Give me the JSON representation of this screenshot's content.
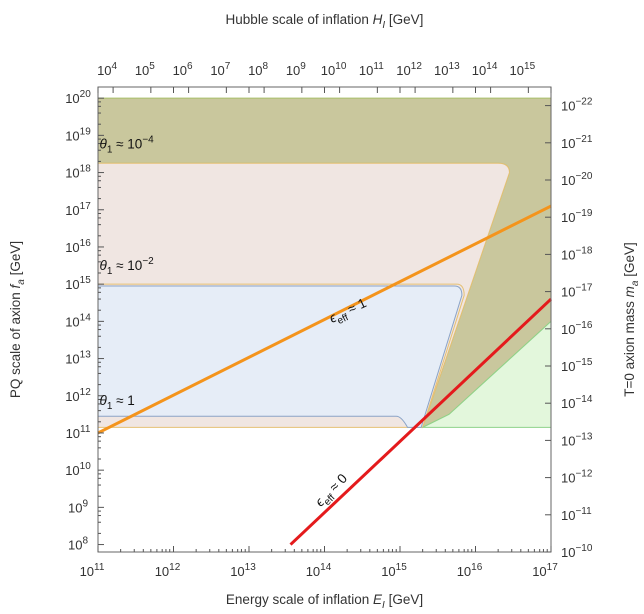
{
  "chart_data": {
    "type": "area",
    "title": "",
    "xlabel": {
      "main": "Energy scale of inflation ",
      "var": "E",
      "sub": "I",
      "unit": " [GeV]"
    },
    "ylabel": {
      "main": "PQ scale of axion ",
      "var": "f",
      "sub": "a",
      "unit": " [GeV]"
    },
    "x2label": {
      "main": "Hubble scale of inflation ",
      "var": "H",
      "sub": "I",
      "unit": " [GeV]"
    },
    "y2label": {
      "main": "T=0 axion mass ",
      "var": "m",
      "sub": "a",
      "unit": " [GeV]"
    },
    "x_scale": "log",
    "y_scale": "log",
    "xlim_exp": [
      11,
      17
    ],
    "ylim_exp": [
      7.8,
      20.3
    ],
    "x_ticks": [
      11,
      12,
      13,
      14,
      15,
      16,
      17
    ],
    "y_ticks": [
      8,
      9,
      10,
      11,
      12,
      13,
      14,
      15,
      16,
      17,
      18,
      19,
      20
    ],
    "x2_ticks": [
      4,
      5,
      6,
      7,
      8,
      9,
      10,
      11,
      12,
      13,
      14,
      15
    ],
    "y2_ticks": [
      -10,
      -11,
      -12,
      -13,
      -14,
      -15,
      -16,
      -17,
      -18,
      -19,
      -20,
      -21,
      -22
    ],
    "x2_mapping": "log10(H_I) = 2*log10(E_I) - 18.4",
    "y2_mapping": "log10(m_a) = -log10(f_a) - 2.2",
    "tick_base": "10",
    "regions": [
      {
        "name": "theta1 ~ 1e-4",
        "fill": "#f0e6e2",
        "stroke": "#e5c074",
        "left_exp": 11,
        "bottom_exp": 18.25,
        "right_exp": 16.45,
        "top_exp": 18.25
      },
      {
        "name": "theta1 ~ 1e-2",
        "fill": "#f0e6e2",
        "stroke": "#e5c074",
        "left_exp": 11,
        "top_exp": 15.0,
        "right_exp": 15.85
      },
      {
        "name": "theta1 ~ 1",
        "fill": "#e6edf7",
        "stroke": "#8aa4c8",
        "left_exp": 11,
        "top_exp": 11.45,
        "right_exp": 15.05
      },
      {
        "name": "green",
        "fill": "#e3f7dc",
        "stroke": "#8fd38a"
      },
      {
        "name": "olive",
        "fill": "#c9c79d",
        "stroke": "#a8bf6a",
        "top_exp": 20.0,
        "right_exp": 17.0
      }
    ],
    "lines": [
      {
        "name": "eps_eff ~ 1",
        "color": "#f4941c",
        "x": [
          11,
          17
        ],
        "y": [
          11.0,
          17.1
        ]
      },
      {
        "name": "eps_eff ~ 0",
        "color": "#e41a1c",
        "x": [
          13.55,
          17
        ],
        "y": [
          8.0,
          14.6
        ]
      }
    ],
    "annotations": [
      {
        "text": "θ",
        "sub": "1",
        "rel": " ≈ 10",
        "sup": "−4",
        "at": [
          11.02,
          18.65
        ]
      },
      {
        "text": "θ",
        "sub": "1",
        "rel": " ≈ 10",
        "sup": "−2",
        "at": [
          11.02,
          15.38
        ]
      },
      {
        "text": "θ",
        "sub": "1",
        "rel": " ≈ 1",
        "sup": "",
        "at": [
          11.02,
          11.75
        ]
      },
      {
        "text": "ϵ",
        "sub": "eff",
        "rel": " ≈ 1",
        "sup": "",
        "at": [
          14.1,
          13.95
        ],
        "angle": -26
      },
      {
        "text": "ϵ",
        "sub": "eff",
        "rel": " ≈ 0",
        "sup": "",
        "at": [
          13.95,
          9.0
        ],
        "angle": -46
      }
    ]
  }
}
